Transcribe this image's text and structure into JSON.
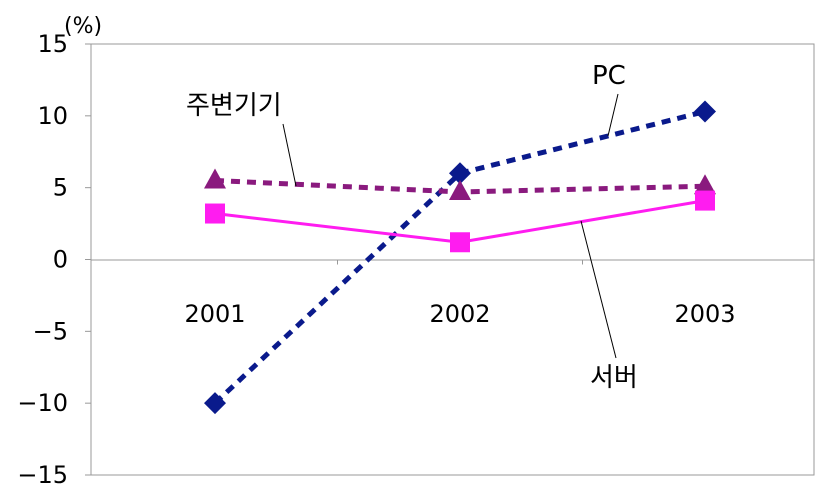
{
  "chart_data": {
    "type": "line",
    "unit_label": "(%)",
    "categories": [
      "2001",
      "2002",
      "2003"
    ],
    "ylim": [
      -15,
      15
    ],
    "yticks": [
      15,
      10,
      5,
      0,
      -5,
      -10,
      -15
    ],
    "grid": false,
    "series": [
      {
        "name": "PC",
        "values": [
          -10,
          6,
          10.3
        ],
        "color": "#0a1a8c",
        "marker": "diamond",
        "line_style": "dashed"
      },
      {
        "name": "주변기기",
        "values": [
          5.5,
          4.7,
          5.1
        ],
        "color": "#8a1a7e",
        "marker": "triangle",
        "line_style": "dashed"
      },
      {
        "name": "서버",
        "values": [
          3.2,
          1.2,
          4.1
        ],
        "color": "#ff1cf0",
        "marker": "square",
        "line_style": "solid"
      }
    ]
  }
}
